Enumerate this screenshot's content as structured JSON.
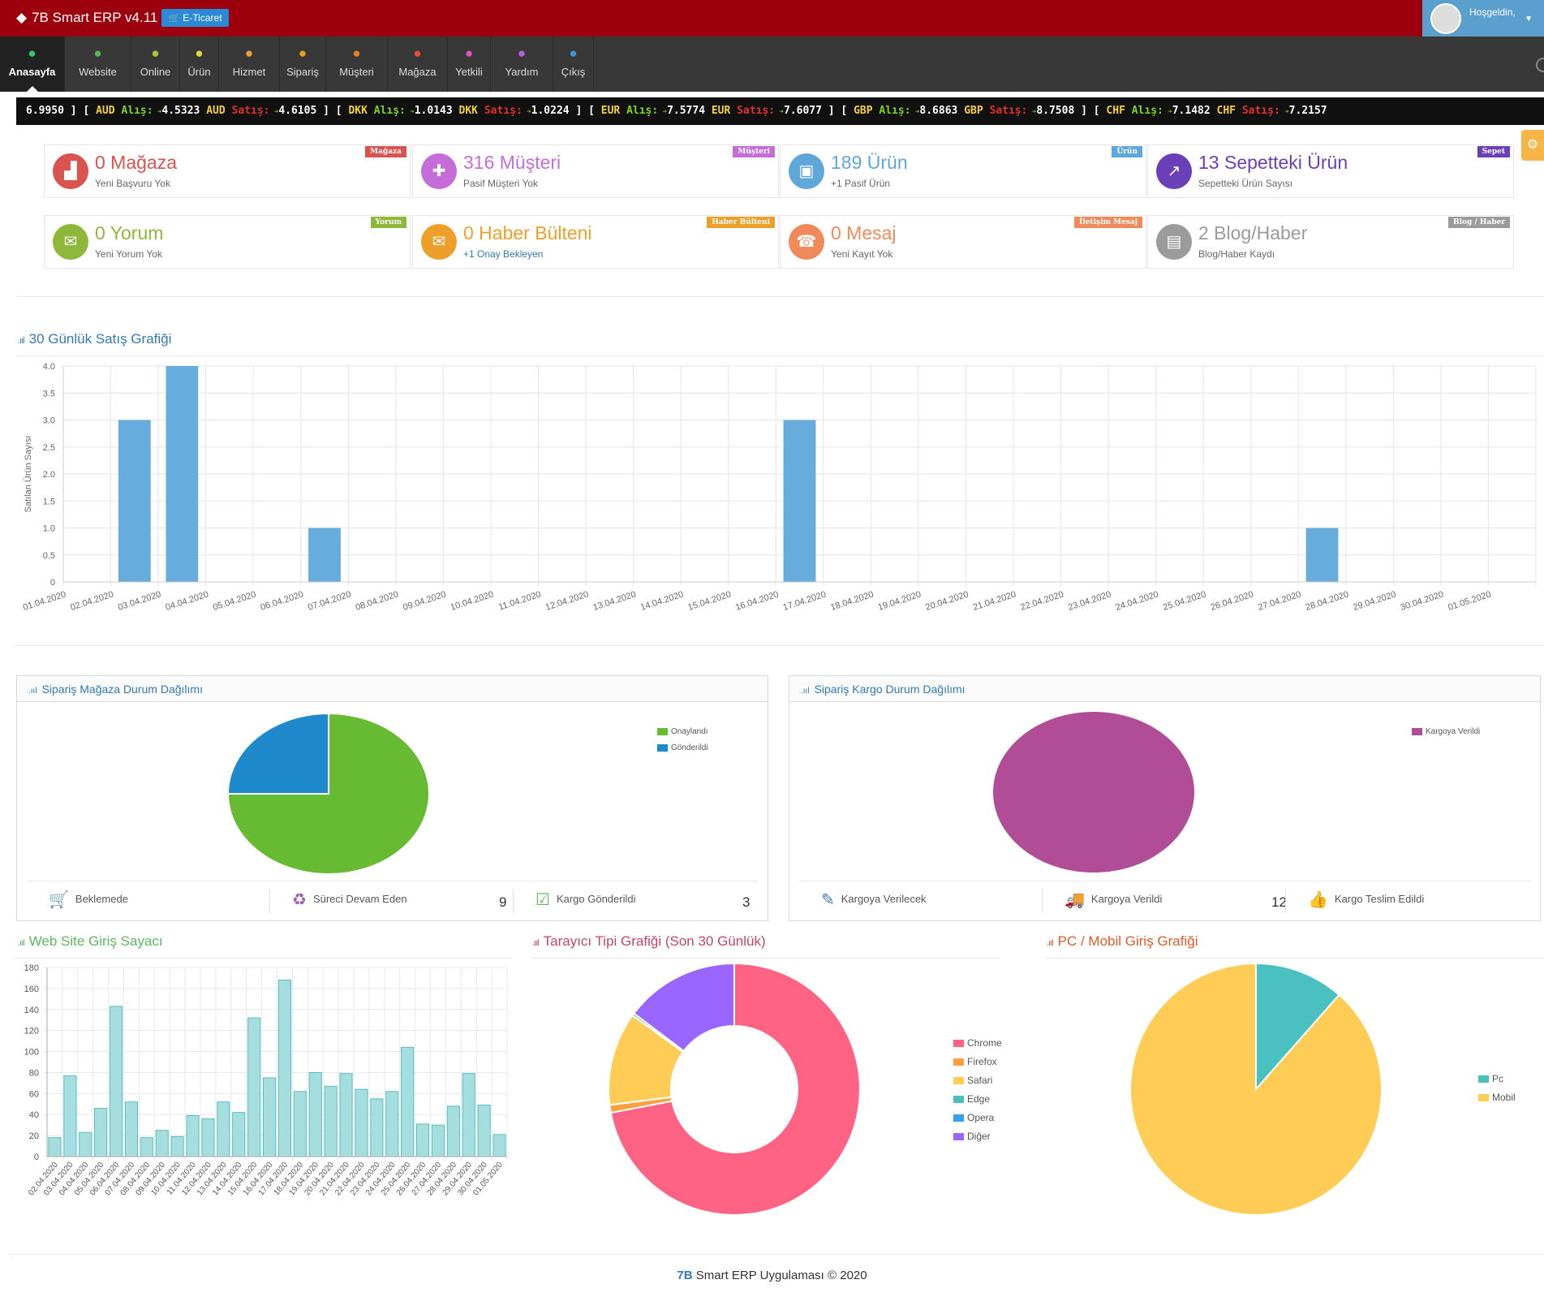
{
  "app": {
    "title": "7B Smart ERP v4.11",
    "eticaret": "E-Ticaret",
    "welcome": "Hoşgeldin,"
  },
  "nav": [
    {
      "label": "Anasayfa",
      "icon": "home-icon",
      "color": "#2ecc71"
    },
    {
      "label": "Website",
      "icon": "globe-icon",
      "color": "#5cb85c"
    },
    {
      "label": "Online",
      "icon": "signal-icon",
      "color": "#a3c93a"
    },
    {
      "label": "Ürün",
      "icon": "cubes-icon",
      "color": "#e8d33a"
    },
    {
      "label": "Hizmet",
      "icon": "cubes-icon",
      "color": "#f0a030"
    },
    {
      "label": "Sipariş",
      "icon": "cart-icon",
      "color": "#f39c12"
    },
    {
      "label": "Müşteri",
      "icon": "vcard-icon",
      "color": "#e67e22"
    },
    {
      "label": "Mağaza",
      "icon": "industry-icon",
      "color": "#e74c3c"
    },
    {
      "label": "Yetkili",
      "icon": "user-plus-icon",
      "color": "#e056c0"
    },
    {
      "label": "Yardım",
      "icon": "ambulance-icon",
      "color": "#b55fe0"
    },
    {
      "label": "Çıkış",
      "icon": "power-icon",
      "color": "#3498db"
    }
  ],
  "ticker": [
    {
      "lead": "6.9950",
      "cur": "AUD",
      "al_label": "Alış:",
      "al": "4.5323",
      "sa_label": "Satış:",
      "sa": "4.6105"
    },
    {
      "cur": "DKK",
      "al_label": "Alış:",
      "al": "1.0143",
      "sa_label": "Satış:",
      "sa": "1.0224"
    },
    {
      "cur": "EUR",
      "al_label": "Alış:",
      "al": "7.5774",
      "sa_label": "Satış:",
      "sa": "7.6077"
    },
    {
      "cur": "GBP",
      "al_label": "Alış:",
      "al": "8.6863",
      "sa_label": "Satış:",
      "sa": "8.7508"
    },
    {
      "cur": "CHF",
      "al_label": "Alış:",
      "al": "7.1482",
      "sa_label": "Satış:",
      "sa": "7.2157"
    }
  ],
  "cards": [
    {
      "title": "0 Mağaza",
      "sub": "Yeni Başvuru Yok",
      "badge": "Mağaza",
      "color": "#d9534f",
      "badge_color": "#d9534f",
      "icon": "industry-icon",
      "glyph": "▟"
    },
    {
      "title": "316 Müşteri",
      "sub": "Pasif Müşteri Yok",
      "badge": "Müşteri",
      "color": "#c46cd8",
      "badge_color": "#c46cd8",
      "icon": "user-plus-icon",
      "glyph": "✚"
    },
    {
      "title": "189 Ürün",
      "sub": "+1 Pasif Ürün",
      "badge": "Ürün",
      "color": "#5ea7d8",
      "badge_color": "#5ea7d8",
      "icon": "cubes-icon",
      "glyph": "▣"
    },
    {
      "title": "13 Sepetteki Ürün",
      "sub": "Sepetteki Ürün Sayısı",
      "badge": "Sepet",
      "color": "#6b3fb8",
      "badge_color": "#6b3fb8",
      "icon": "chart-line-icon",
      "glyph": "↗"
    },
    {
      "title": "0 Yorum",
      "sub": "Yeni Yorum Yok",
      "badge": "Yorum",
      "color": "#8db83a",
      "badge_color": "#8db83a",
      "icon": "comments-icon",
      "glyph": "✉"
    },
    {
      "title": "0 Haber Bülteni",
      "sub": "+1 Onay Bekleyen",
      "badge": "Haber Bülteni",
      "color": "#eca02a",
      "badge_color": "#eca02a",
      "icon": "envelope-icon",
      "glyph": "✉",
      "sub_color": "#337ab7"
    },
    {
      "title": "0 Mesaj",
      "sub": "Yeni Kayıt Yok",
      "badge": "İletişim Mesaj",
      "color": "#f08a5a",
      "badge_color": "#f08a5a",
      "icon": "phone-icon",
      "glyph": "☎"
    },
    {
      "title": "2 Blog/Haber",
      "sub": "Blog/Haber Kaydı",
      "badge": "Blog / Haber",
      "color": "#9b9b9b",
      "badge_color": "#9b9b9b",
      "icon": "newspaper-icon",
      "glyph": "▤"
    }
  ],
  "sales": {
    "title": "30 Günlük Satış Grafiği"
  },
  "store_panel": {
    "title": "Sipariş Mağaza Durum Dağılımı",
    "stats": [
      {
        "label": "Beklemede",
        "value": "",
        "icon": "cart-plus-icon",
        "glyph": "🛒",
        "color": "#3a7cc2"
      },
      {
        "label": "Süreci Devam Eden",
        "value": "9",
        "icon": "recycle-icon",
        "glyph": "♻",
        "color": "#9b59b6"
      },
      {
        "label": "Kargo Gönderildi",
        "value": "3",
        "icon": "calendar-check-icon",
        "glyph": "☑",
        "color": "#5cb85c"
      }
    ]
  },
  "cargo_panel": {
    "title": "Sipariş Kargo Durum Dağılımı",
    "stats": [
      {
        "label": "Kargoya Verilecek",
        "value": "",
        "icon": "edit-icon",
        "glyph": "✎",
        "color": "#3a7cc2"
      },
      {
        "label": "Kargoya Verildi",
        "value": "12",
        "icon": "truck-icon",
        "glyph": "🚚",
        "color": "#8e5ec9"
      },
      {
        "label": "Kargo Teslim Edildi",
        "value": "",
        "icon": "thumbs-up-icon",
        "glyph": "👍",
        "color": "#5cb85c"
      }
    ]
  },
  "visit": {
    "title": "Web Site Giriş Sayacı"
  },
  "browser": {
    "title": "Tarayıcı Tipi Grafiği (Son 30 Günlük)"
  },
  "device": {
    "title": "PC / Mobil Giriş Grafiği"
  },
  "footer": {
    "brand": "7B",
    "text": "Smart ERP Uygulaması © 2020"
  },
  "chart_data": [
    {
      "type": "bar",
      "ylabel": "Satılan Ürün Sayısı",
      "ylim": [
        0,
        4.0
      ],
      "yticks": [
        "0",
        "0.5",
        "1.0",
        "1.5",
        "2.0",
        "2.5",
        "3.0",
        "3.5",
        "4.0"
      ],
      "categories": [
        "01.04.2020",
        "02.04.2020",
        "03.04.2020",
        "04.04.2020",
        "05.04.2020",
        "06.04.2020",
        "07.04.2020",
        "08.04.2020",
        "09.04.2020",
        "10.04.2020",
        "11.04.2020",
        "12.04.2020",
        "13.04.2020",
        "14.04.2020",
        "15.04.2020",
        "16.04.2020",
        "17.04.2020",
        "18.04.2020",
        "19.04.2020",
        "20.04.2020",
        "21.04.2020",
        "22.04.2020",
        "23.04.2020",
        "24.04.2020",
        "25.04.2020",
        "26.04.2020",
        "27.04.2020",
        "28.04.2020",
        "29.04.2020",
        "30.04.2020",
        "01.05.2020"
      ],
      "values": [
        0,
        3,
        4,
        0,
        0,
        1,
        0,
        0,
        0,
        0,
        0,
        0,
        0,
        0,
        0,
        3,
        0,
        0,
        0,
        0,
        0,
        0,
        0,
        0,
        0,
        0,
        1,
        0,
        0,
        0,
        0
      ],
      "color": "#66acdc",
      "grid": true
    },
    {
      "type": "pie",
      "labels": [
        "Onaylandı",
        "Gönderildi"
      ],
      "values": [
        3,
        1
      ],
      "colors": [
        "#66bb33",
        "#1f8acb"
      ],
      "legend": "top-right"
    },
    {
      "type": "pie",
      "labels": [
        "Kargoya Verildi"
      ],
      "values": [
        12
      ],
      "colors": [
        "#b04d96"
      ],
      "legend": "top-right"
    },
    {
      "type": "bar",
      "ylim": [
        0,
        180
      ],
      "yticks": [
        "0",
        "20",
        "40",
        "60",
        "80",
        "100",
        "120",
        "140",
        "160",
        "180"
      ],
      "categories": [
        "02.04.2020",
        "03.04.2020",
        "04.04.2020",
        "05.04.2020",
        "06.04.2020",
        "07.04.2020",
        "08.04.2020",
        "09.04.2020",
        "10.04.2020",
        "11.04.2020",
        "12.04.2020",
        "13.04.2020",
        "14.04.2020",
        "15.04.2020",
        "16.04.2020",
        "17.04.2020",
        "18.04.2020",
        "19.04.2020",
        "20.04.2020",
        "21.04.2020",
        "22.04.2020",
        "23.04.2020",
        "24.04.2020",
        "25.04.2020",
        "26.04.2020",
        "27.04.2020",
        "28.04.2020",
        "29.04.2020",
        "30.04.2020",
        "01.05.2020"
      ],
      "values": [
        18,
        77,
        23,
        46,
        143,
        52,
        18,
        25,
        19,
        39,
        36,
        52,
        42,
        132,
        75,
        168,
        62,
        80,
        67,
        79,
        64,
        55,
        62,
        104,
        31,
        30,
        48,
        79,
        49,
        21
      ],
      "color": "#a5dedf",
      "border": "#5bbcbd",
      "grid": true
    },
    {
      "type": "doughnut",
      "labels": [
        "Chrome",
        "Firefox",
        "Safari",
        "Edge",
        "Opera",
        "Diğer"
      ],
      "values": [
        72,
        1,
        12,
        0,
        0.3,
        14.7
      ],
      "colors": [
        "#ff6384",
        "#ff9f40",
        "#ffcd56",
        "#4bc0c0",
        "#36a2eb",
        "#9966ff"
      ],
      "legend": "right"
    },
    {
      "type": "pie",
      "labels": [
        "Pc",
        "Mobil"
      ],
      "values": [
        11.5,
        88.5
      ],
      "colors": [
        "#4bc0c0",
        "#ffcd56"
      ],
      "legend": "right"
    }
  ]
}
